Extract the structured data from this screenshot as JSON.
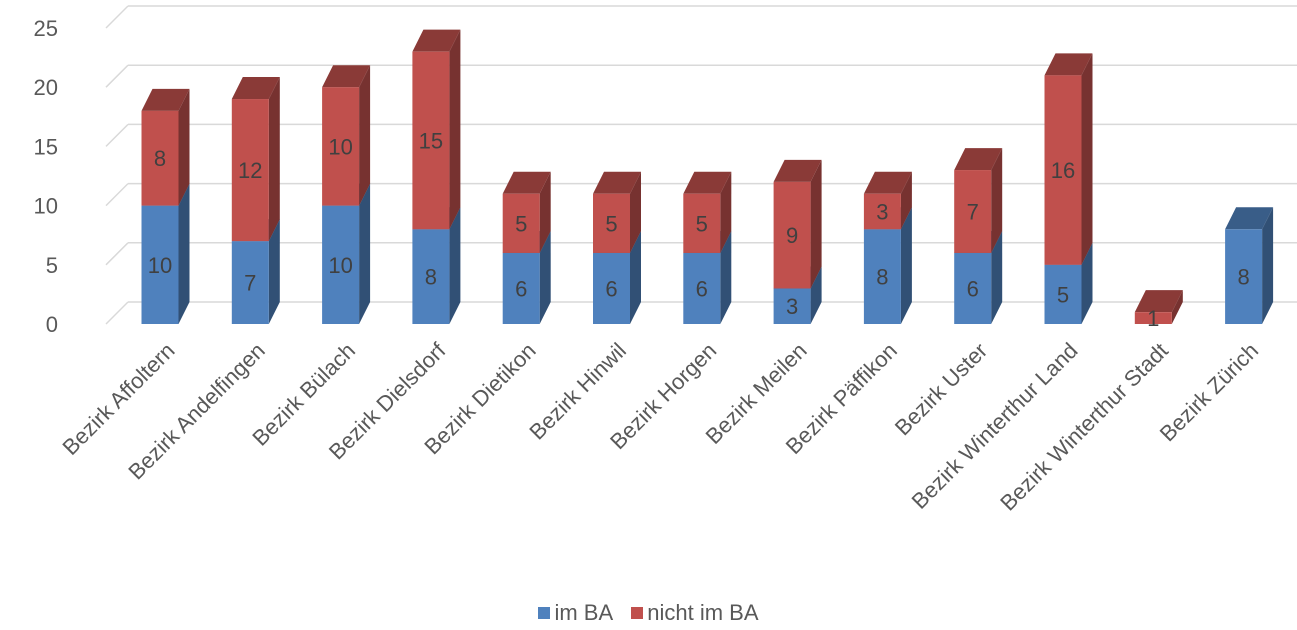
{
  "chart_data": {
    "type": "bar",
    "stacked": true,
    "style": "3d-column",
    "categories": [
      "Bezirk Affoltern",
      "Bezirk Andelfingen",
      "Bezirk Bülach",
      "Bezirk Dielsdorf",
      "Bezirk Dietikon",
      "Bezirk Hinwil",
      "Bezirk Horgen",
      "Bezirk Meilen",
      "Bezirk Päffikon",
      "Bezirk Uster",
      "Bezirk Winterthur Land",
      "Bezirk Winterthur Stadt",
      "Bezirk Zürich"
    ],
    "series": [
      {
        "name": "im BA",
        "color": "#4f81bd",
        "values": [
          10,
          7,
          10,
          8,
          6,
          6,
          6,
          3,
          8,
          6,
          5,
          0,
          8
        ],
        "labels": [
          "10",
          "7",
          "10",
          "8",
          "6",
          "6",
          "6",
          "3",
          "8",
          "6",
          "5",
          "",
          "8"
        ]
      },
      {
        "name": "nicht im BA",
        "color": "#c0504d",
        "values": [
          8,
          12,
          10,
          15,
          5,
          5,
          5,
          9,
          3,
          7,
          16,
          1,
          0
        ],
        "labels": [
          "8",
          "12",
          "10",
          "15",
          "5",
          "5",
          "5",
          "9",
          "3",
          "7",
          "16",
          "1",
          ""
        ]
      }
    ],
    "yticks": [
      "0",
      "5",
      "10",
      "15",
      "20",
      "25"
    ],
    "ylim": [
      0,
      25
    ],
    "grid": true,
    "legend_position": "bottom"
  }
}
